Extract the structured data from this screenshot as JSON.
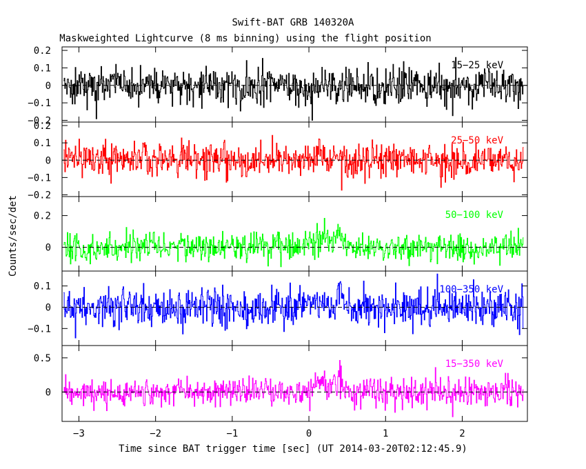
{
  "chart_data": {
    "type": "line",
    "title": "Swift-BAT GRB 140320A",
    "subtitle": "Maskweighted Lightcurve (8 ms binning) using the flight position",
    "xlabel": "Time since BAT trigger time [sec] (UT 2014-03-20T02:12:45.9)",
    "ylabel": "Counts/sec/det",
    "xlim": [
      -3.22,
      2.85
    ],
    "x_ticks": [
      -3,
      -2,
      -1,
      0,
      1,
      2
    ],
    "x_tick_labels": [
      "−3",
      "−2",
      "−1",
      "0",
      "1",
      "2"
    ],
    "bin_width_s": 0.008,
    "trace_start_s": -3.2,
    "trace_end_s": 2.8,
    "zero_line": "dashed",
    "panels": [
      {
        "name": "15−25 keV",
        "color": "#000000",
        "ylim": [
          -0.21,
          0.22
        ],
        "y_ticks": [
          0.2,
          0.1,
          0,
          -0.1,
          -0.2
        ],
        "y_tick_labels": [
          "0.2",
          "0.1",
          "0",
          "−0.1",
          "−0.2"
        ],
        "noise_sigma": 0.055,
        "burst_peak": 0.0
      },
      {
        "name": "25−50 keV",
        "color": "#ff0000",
        "ylim": [
          -0.21,
          0.22
        ],
        "y_ticks": [
          0.2,
          0.1,
          0,
          -0.1,
          -0.2
        ],
        "y_tick_labels": [
          "0.2",
          "0.1",
          "0",
          "−0.1",
          "−0.2"
        ],
        "noise_sigma": 0.05,
        "burst_peak": 0.03
      },
      {
        "name": "50−100 keV",
        "color": "#00ff00",
        "ylim": [
          -0.15,
          0.32
        ],
        "y_ticks": [
          0.2,
          0
        ],
        "y_tick_labels": [
          "0.2",
          "0"
        ],
        "noise_sigma": 0.045,
        "burst_peak": 0.09
      },
      {
        "name": "100−350 keV",
        "color": "#0000ff",
        "ylim": [
          -0.18,
          0.17
        ],
        "y_ticks": [
          0.1,
          0,
          -0.1
        ],
        "y_tick_labels": [
          "0.1",
          "0",
          "−0.1"
        ],
        "noise_sigma": 0.045,
        "burst_peak": 0.04
      },
      {
        "name": "15−350 keV",
        "color": "#ff00ff",
        "ylim": [
          -0.43,
          0.68
        ],
        "y_ticks": [
          0.5,
          0
        ],
        "y_tick_labels": [
          "0.5",
          "0"
        ],
        "noise_sigma": 0.1,
        "burst_peak": 0.2
      }
    ]
  }
}
